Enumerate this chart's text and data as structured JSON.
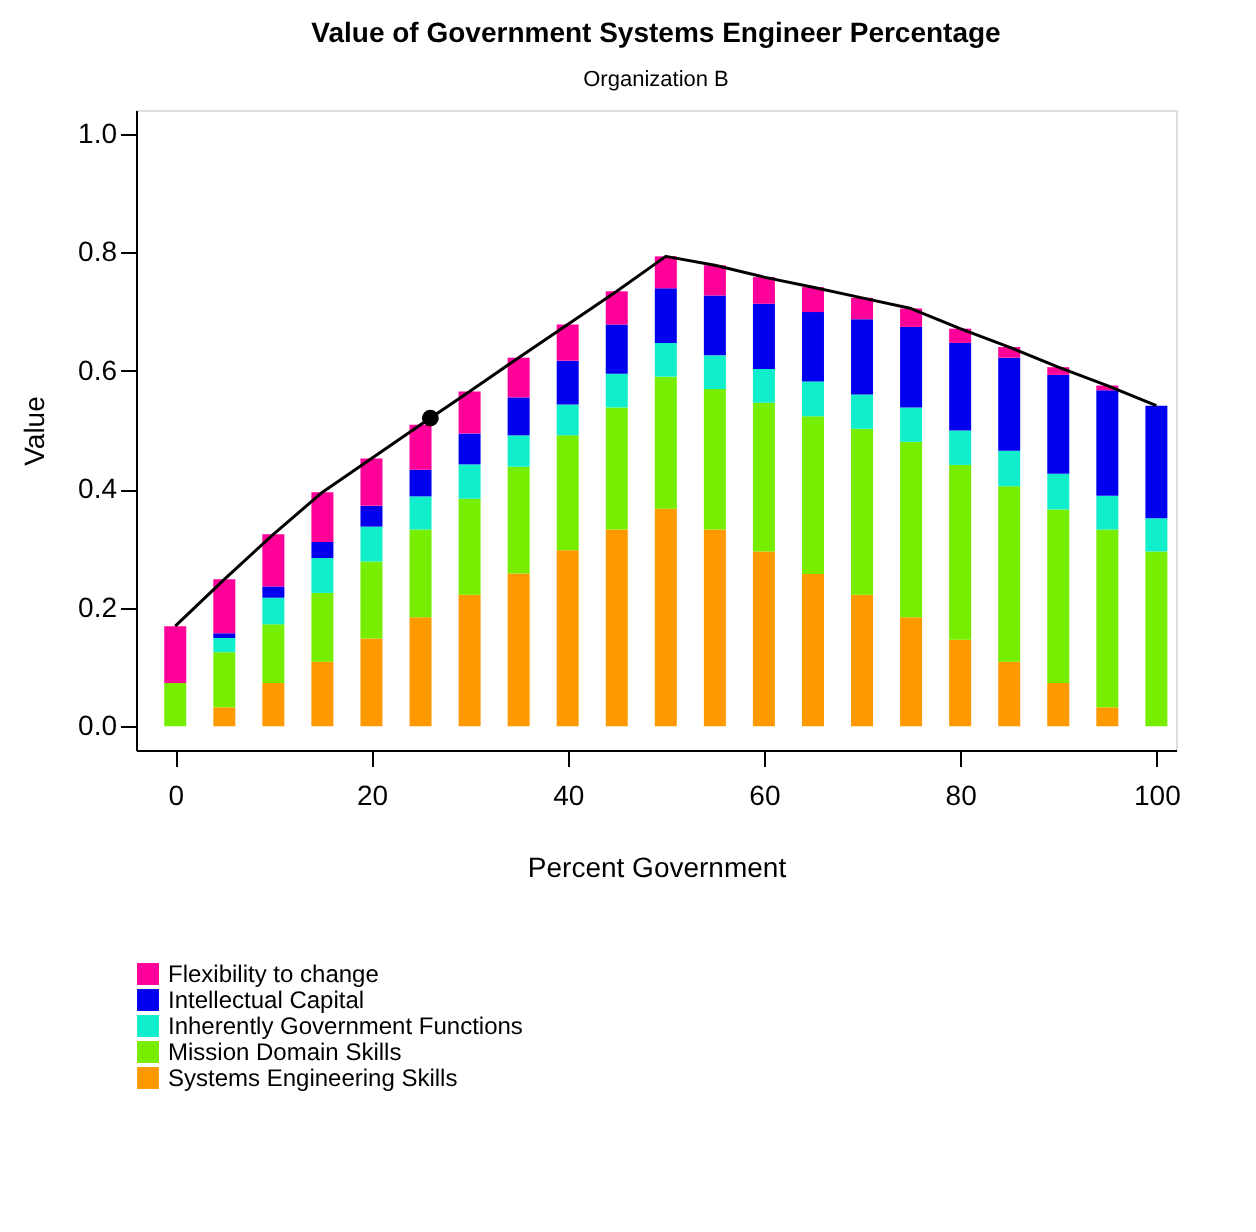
{
  "chart_data": {
    "type": "bar",
    "stacked": true,
    "title": "Value of Government Systems Engineer Percentage",
    "subtitle": "Organization B",
    "xlabel": "Percent Government",
    "ylabel": "Value",
    "x": [
      0,
      5,
      10,
      15,
      20,
      25,
      30,
      35,
      40,
      45,
      50,
      55,
      60,
      65,
      70,
      75,
      80,
      85,
      90,
      95,
      100
    ],
    "xlim": [
      -4,
      102
    ],
    "xticks": [
      0,
      20,
      40,
      60,
      80,
      100
    ],
    "ylim": [
      -0.04,
      1.04
    ],
    "yticks": [
      {
        "value": 0,
        "label": "0.0"
      },
      0.2,
      0.4,
      0.6,
      0.8,
      {
        "value": 1,
        "label": "1.0"
      }
    ],
    "grid": false,
    "legend": "bottom",
    "series": [
      {
        "name": "Systems Engineering Skills",
        "color": "#ff9900",
        "values": [
          0,
          0.032,
          0.073,
          0.109,
          0.148,
          0.184,
          0.222,
          0.258,
          0.297,
          0.332,
          0.367,
          0.332,
          0.295,
          0.257,
          0.222,
          0.184,
          0.146,
          0.109,
          0.073,
          0.032,
          0
        ]
      },
      {
        "name": "Mission Domain Skills",
        "color": "#77ee00",
        "values": [
          0.073,
          0.093,
          0.099,
          0.116,
          0.13,
          0.148,
          0.162,
          0.18,
          0.194,
          0.206,
          0.223,
          0.237,
          0.251,
          0.266,
          0.28,
          0.296,
          0.295,
          0.296,
          0.293,
          0.3,
          0.295
        ]
      },
      {
        "name": "Inherently Government Functions",
        "color": "#11eecc",
        "values": [
          0,
          0.024,
          0.045,
          0.059,
          0.059,
          0.056,
          0.058,
          0.053,
          0.052,
          0.057,
          0.057,
          0.057,
          0.057,
          0.059,
          0.058,
          0.058,
          0.058,
          0.06,
          0.06,
          0.057,
          0.056
        ]
      },
      {
        "name": "Intellectual Capital",
        "color": "#0000ee",
        "values": [
          0,
          0.008,
          0.019,
          0.027,
          0.035,
          0.045,
          0.052,
          0.064,
          0.074,
          0.083,
          0.092,
          0.101,
          0.11,
          0.117,
          0.127,
          0.136,
          0.148,
          0.157,
          0.167,
          0.178,
          0.19
        ]
      },
      {
        "name": "Flexibility to change",
        "color": "#ff0099",
        "values": [
          0.096,
          0.091,
          0.088,
          0.084,
          0.08,
          0.076,
          0.071,
          0.067,
          0.061,
          0.056,
          0.054,
          0.051,
          0.045,
          0.042,
          0.036,
          0.031,
          0.024,
          0.018,
          0.013,
          0.008,
          0
        ]
      },
      {
        "type": "line",
        "color": "#000000",
        "line_style": "solid",
        "values": [
          0.169,
          0.248,
          0.324,
          0.395,
          0.452,
          0.509,
          0.565,
          0.622,
          0.678,
          0.734,
          0.793,
          0.778,
          0.758,
          0.741,
          0.723,
          0.705,
          0.671,
          0.64,
          0.606,
          0.575,
          0.541
        ]
      },
      {
        "type": "scatter",
        "color": "#000000",
        "marker": "circle",
        "x": [
          26
        ],
        "values": [
          0.52
        ]
      }
    ]
  }
}
